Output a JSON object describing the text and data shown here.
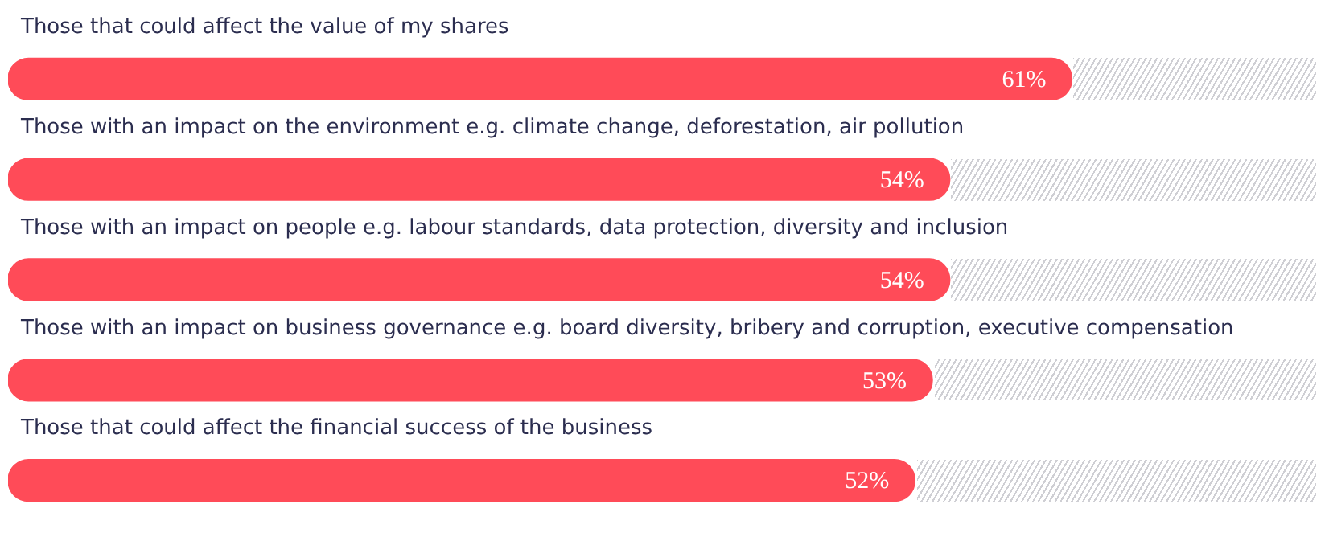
{
  "chart_data": {
    "type": "bar",
    "orientation": "horizontal",
    "categories": [
      "Those that could affect the value of my shares",
      "Those with an impact on the environment e.g. climate change, deforestation, air pollution",
      "Those with an impact on people e.g. labour standards, data protection, diversity and inclusion",
      "Those with an impact on business governance e.g. board diversity, bribery and corruption, executive compensation",
      "Those that could affect the financial success of the business"
    ],
    "values": [
      61,
      54,
      54,
      53,
      52
    ],
    "value_labels": [
      "61%",
      "54%",
      "54%",
      "53%",
      "52%"
    ],
    "color": "#ff4b58",
    "xlim": [
      0,
      75
    ],
    "tick_labels": false,
    "legend": false
  }
}
